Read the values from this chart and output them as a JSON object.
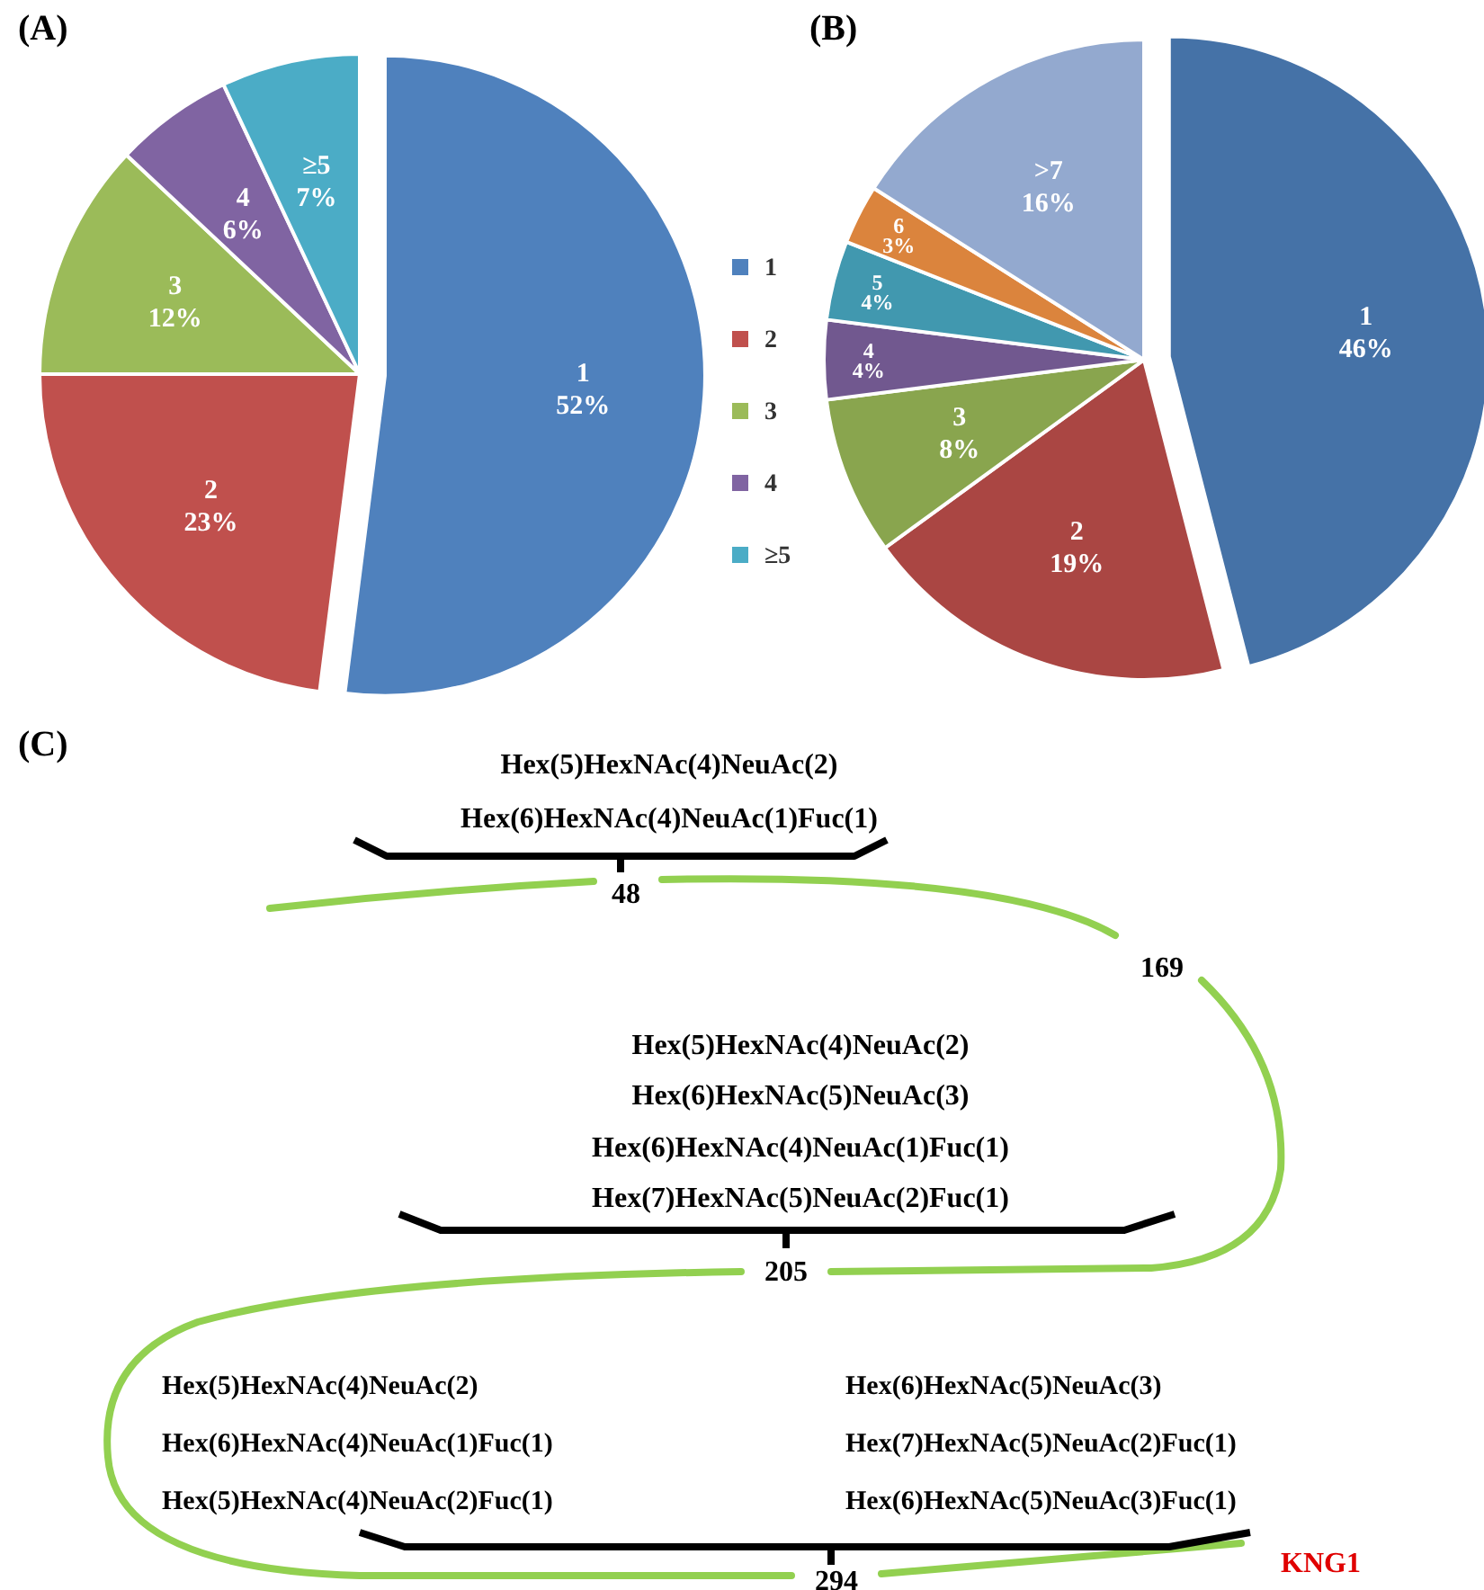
{
  "chart_data": [
    {
      "type": "pie",
      "title": "(A)",
      "categories": [
        "1",
        "2",
        "3",
        "4",
        "≥5"
      ],
      "values": [
        52,
        23,
        12,
        6,
        7
      ],
      "value_labels": [
        "52%",
        "23%",
        "12%",
        "6%",
        "7%"
      ],
      "colors": [
        "#4f81bd",
        "#c0504d",
        "#9bbb59",
        "#8064a2",
        "#4bacc6"
      ],
      "legend": "right"
    },
    {
      "type": "pie",
      "title": "(B)",
      "categories": [
        "1",
        "2",
        "3",
        "4",
        "5",
        "6",
        ">7"
      ],
      "values": [
        46,
        19,
        8,
        4,
        4,
        3,
        16
      ],
      "value_labels": [
        "46%",
        "19%",
        "8%",
        "4%",
        "4%",
        "3%",
        "16%"
      ],
      "colors": [
        "#4572a7",
        "#aa4643",
        "#89a54e",
        "#71588f",
        "#4198af",
        "#db843d",
        "#93a9cf"
      ],
      "legend": false
    },
    {
      "type": "other",
      "title": "(C)",
      "annotations": [
        "Hex(5)HexNAc(4)NeuAc(2)",
        "Hex(6)HexNAc(4)NeuAc(1)Fuc(1)",
        "48",
        "169",
        "Hex(5)HexNAc(4)NeuAc(2)",
        "Hex(6)HexNAc(5)NeuAc(3)",
        "Hex(6)HexNAc(4)NeuAc(1)Fuc(1)",
        "Hex(7)HexNAc(5)NeuAc(2)Fuc(1)",
        "205",
        "Hex(5)HexNAc(4)NeuAc(2)",
        "Hex(6)HexNAc(4)NeuAc(1)Fuc(1)",
        "Hex(5)HexNAc(4)NeuAc(2)Fuc(1)",
        "Hex(6)HexNAc(5)NeuAc(3)",
        "Hex(7)HexNAc(5)NeuAc(2)Fuc(1)",
        "Hex(6)HexNAc(5)NeuAc(3)Fuc(1)",
        "294",
        "KNG1"
      ]
    }
  ]
}
